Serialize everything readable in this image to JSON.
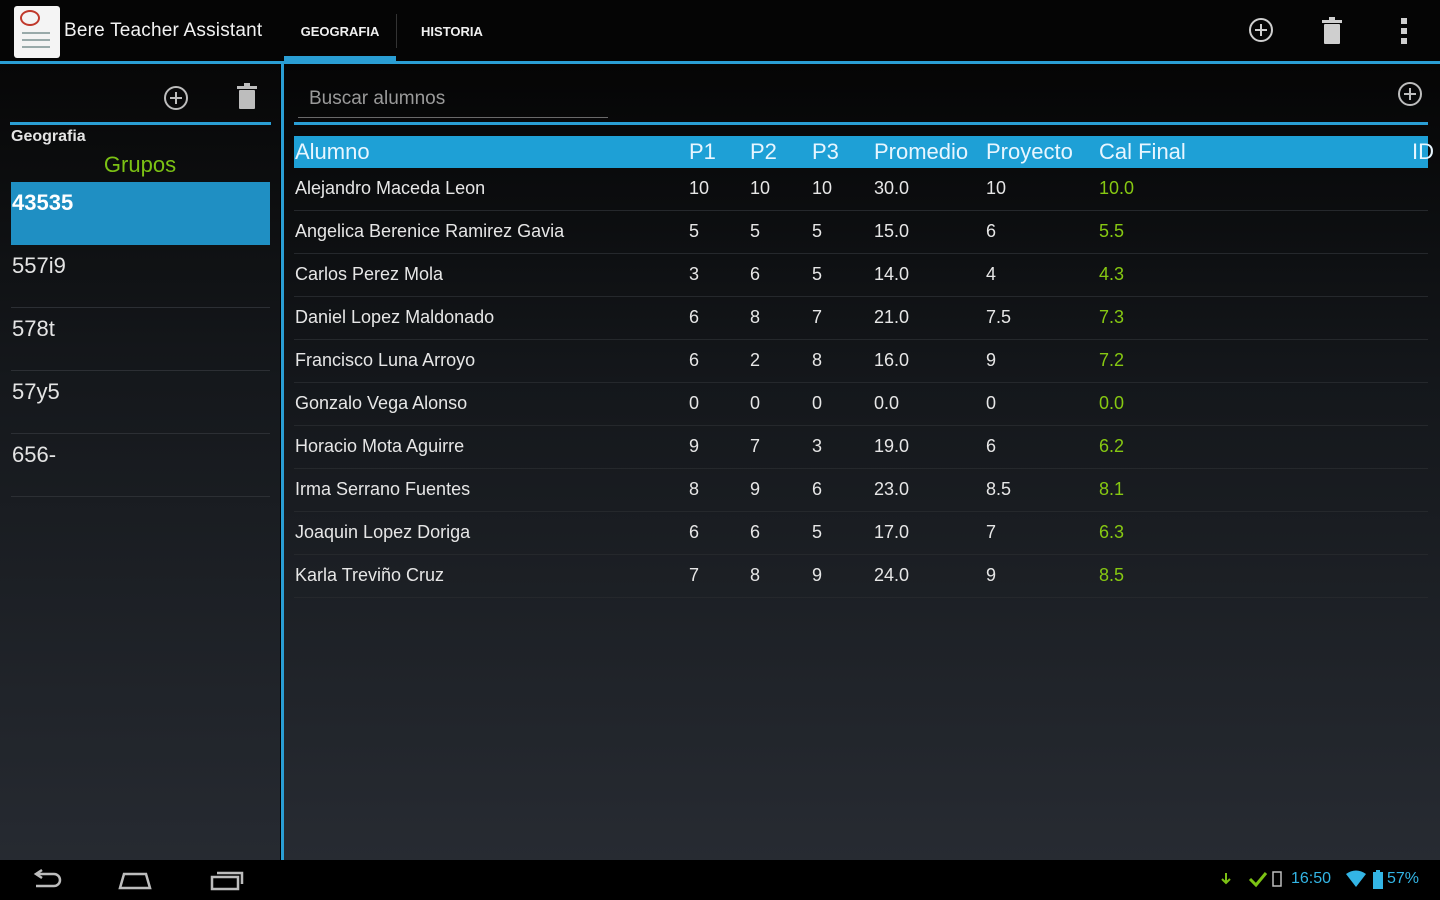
{
  "app": {
    "title": "Bere Teacher Assistant"
  },
  "tabs": [
    {
      "label": "GEOGRAFIA",
      "active": true
    },
    {
      "label": "HISTORIA",
      "active": false
    }
  ],
  "action_icons": [
    "add-circle-icon",
    "trash-icon",
    "overflow-menu-icon"
  ],
  "left_pane": {
    "subject": "Geografia",
    "groups_title": "Grupos",
    "groups": [
      "43535",
      "557i9",
      "578t",
      "57y5",
      "656-"
    ],
    "selected_group": "43535"
  },
  "right_pane": {
    "search_placeholder": "Buscar alumnos",
    "columns": [
      "Alumno",
      "P1",
      "P2",
      "P3",
      "Promedio",
      "Proyecto",
      "Cal Final",
      "ID"
    ],
    "rows": [
      {
        "alumno": "Alejandro Maceda Leon",
        "p1": "10",
        "p2": "10",
        "p3": "10",
        "promedio": "30.0",
        "proyecto": "10",
        "cal_final": "10.0"
      },
      {
        "alumno": "Angelica Berenice Ramirez Gavia",
        "p1": "5",
        "p2": "5",
        "p3": "5",
        "promedio": "15.0",
        "proyecto": "6",
        "cal_final": "5.5"
      },
      {
        "alumno": "Carlos Perez Mola",
        "p1": "3",
        "p2": "6",
        "p3": "5",
        "promedio": "14.0",
        "proyecto": "4",
        "cal_final": "4.3"
      },
      {
        "alumno": "Daniel Lopez Maldonado",
        "p1": "6",
        "p2": "8",
        "p3": "7",
        "promedio": "21.0",
        "proyecto": "7.5",
        "cal_final": "7.3"
      },
      {
        "alumno": "Francisco Luna Arroyo",
        "p1": "6",
        "p2": "2",
        "p3": "8",
        "promedio": "16.0",
        "proyecto": "9",
        "cal_final": "7.2"
      },
      {
        "alumno": "Gonzalo Vega Alonso",
        "p1": "0",
        "p2": "0",
        "p3": "0",
        "promedio": "0.0",
        "proyecto": "0",
        "cal_final": "0.0"
      },
      {
        "alumno": "Horacio Mota Aguirre",
        "p1": "9",
        "p2": "7",
        "p3": "3",
        "promedio": "19.0",
        "proyecto": "6",
        "cal_final": "6.2"
      },
      {
        "alumno": "Irma Serrano Fuentes",
        "p1": "8",
        "p2": "9",
        "p3": "6",
        "promedio": "23.0",
        "proyecto": "8.5",
        "cal_final": "8.1"
      },
      {
        "alumno": "Joaquin Lopez Doriga",
        "p1": "6",
        "p2": "6",
        "p3": "5",
        "promedio": "17.0",
        "proyecto": "7",
        "cal_final": "6.3"
      },
      {
        "alumno": "Karla Treviño Cruz",
        "p1": "7",
        "p2": "8",
        "p3": "9",
        "promedio": "24.0",
        "proyecto": "9",
        "cal_final": "8.5"
      }
    ]
  },
  "status_bar": {
    "time": "16:50",
    "battery": "57%"
  },
  "colors": {
    "accent": "#2a9ed4",
    "header_bg": "#1ea0d6",
    "grade": "#86c812",
    "groups_title": "#7cc214"
  }
}
